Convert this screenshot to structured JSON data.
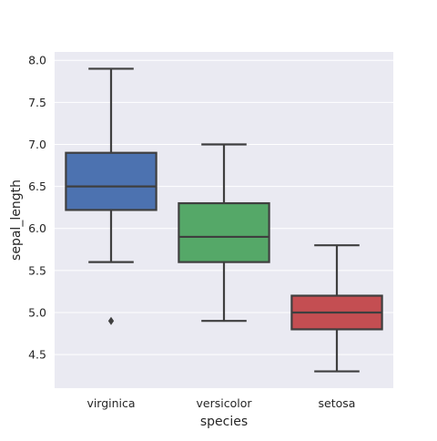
{
  "chart_data": {
    "type": "box",
    "xlabel": "species",
    "ylabel": "sepal_length",
    "categories": [
      "virginica",
      "versicolor",
      "setosa"
    ],
    "ylim": [
      4.1,
      8.1
    ],
    "yticks": [
      4.5,
      5.0,
      5.5,
      6.0,
      6.5,
      7.0,
      7.5,
      8.0
    ],
    "ytick_labels": [
      "4.5",
      "5.0",
      "5.5",
      "6.0",
      "6.5",
      "7.0",
      "7.5",
      "8.0"
    ],
    "grid": true,
    "boxes": [
      {
        "category": "virginica",
        "min": 5.6,
        "q1": 6.22,
        "median": 6.5,
        "q3": 6.9,
        "max": 7.9,
        "outliers": [
          4.9
        ],
        "color": "#4c72b0"
      },
      {
        "category": "versicolor",
        "min": 4.9,
        "q1": 5.6,
        "median": 5.9,
        "q3": 6.3,
        "max": 7.0,
        "outliers": [],
        "color": "#55a868"
      },
      {
        "category": "setosa",
        "min": 4.3,
        "q1": 4.8,
        "median": 5.0,
        "q3": 5.2,
        "max": 5.8,
        "outliers": [],
        "color": "#c44e52"
      }
    ],
    "colors": {
      "plot_background": "#eaeaf2",
      "grid": "#ffffff",
      "line": "#3f3f3f"
    }
  }
}
